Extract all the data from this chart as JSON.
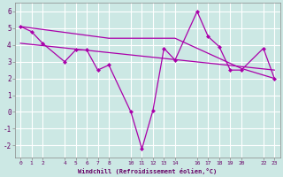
{
  "background_color": "#cce8e4",
  "grid_color": "#b0d8d2",
  "line_color": "#aa00aa",
  "xlabel": "Windchill (Refroidissement éolien,°C)",
  "ylim": [
    -2.7,
    6.5
  ],
  "xlim": [
    -0.5,
    23.5
  ],
  "yticks": [
    -2,
    -1,
    0,
    1,
    2,
    3,
    4,
    5,
    6
  ],
  "xticks": [
    0,
    1,
    2,
    4,
    5,
    6,
    7,
    8,
    10,
    11,
    12,
    13,
    14,
    16,
    17,
    18,
    19,
    20,
    22,
    23
  ],
  "series": [
    {
      "x": [
        0,
        1,
        2,
        4,
        5,
        6,
        7,
        8,
        10,
        11,
        12,
        13,
        14,
        16,
        17,
        18,
        19,
        20,
        22,
        23
      ],
      "y": [
        5.1,
        4.8,
        4.1,
        3.0,
        3.7,
        3.7,
        2.5,
        2.8,
        0.0,
        -2.2,
        0.1,
        3.8,
        3.1,
        6.0,
        4.5,
        3.9,
        2.5,
        2.5,
        3.8,
        2.0
      ]
    },
    {
      "x": [
        0,
        8,
        14,
        20,
        23
      ],
      "y": [
        5.1,
        4.4,
        4.4,
        2.6,
        2.0
      ]
    },
    {
      "x": [
        0,
        23
      ],
      "y": [
        4.1,
        2.5
      ]
    }
  ]
}
